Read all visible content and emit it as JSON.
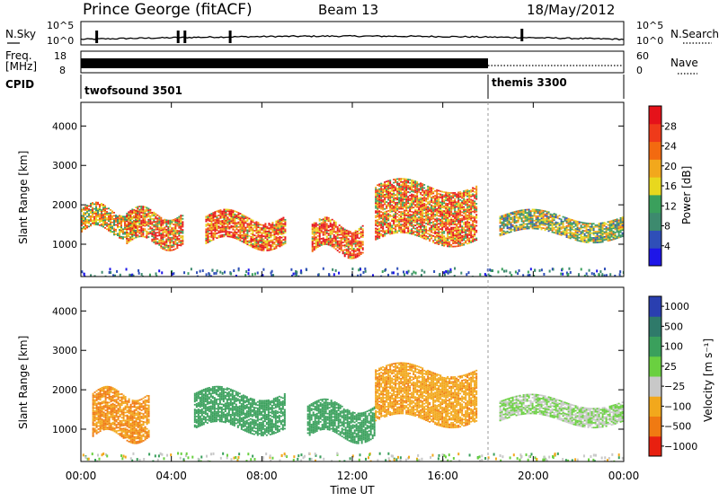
{
  "header": {
    "station": "Prince George (fitACF)",
    "beam": "Beam 13",
    "date": "18/May/2012"
  },
  "noise_panel": {
    "left_label": "N.Sky",
    "right_label": "N.Search",
    "y_ticks": [
      "10^5",
      "10^0"
    ],
    "spike_times_h": [
      0.7,
      4.3,
      4.6,
      6.6,
      19.5
    ]
  },
  "freq_panel": {
    "left_label": "Freq.",
    "left_unit": "[MHz]",
    "left_ticks": [
      "18",
      "8"
    ],
    "right_label": "Nave",
    "right_ticks": [
      "60",
      "0"
    ],
    "freq_mhz_until_18h": 10.5,
    "nave_after_18h": 12
  },
  "cpid_panel": {
    "label": "CPID",
    "programs": [
      {
        "name": "twofsound 3501",
        "start_h": 0,
        "end_h": 18
      },
      {
        "name": "themis 3300",
        "start_h": 18,
        "end_h": 24
      }
    ]
  },
  "x_axis": {
    "label": "Time UT",
    "ticks": [
      "00:00",
      "04:00",
      "08:00",
      "12:00",
      "16:00",
      "20:00",
      "00:00"
    ],
    "tick_values_h": [
      0,
      4,
      8,
      12,
      16,
      20,
      24
    ]
  },
  "chart_data": [
    {
      "type": "heatmap",
      "name": "Power",
      "ylabel": "Slant Range [km]",
      "y_ticks": [
        "1000",
        "2000",
        "3000",
        "4000"
      ],
      "ylim": [
        180,
        4600
      ],
      "xlim": [
        0,
        24
      ],
      "colorbar": {
        "label": "Power [dB]",
        "ticks": [
          "4",
          "8",
          "12",
          "16",
          "20",
          "24",
          "28"
        ],
        "colors": [
          "#1e16e8",
          "#2f4fb8",
          "#3d8a6e",
          "#3aa05c",
          "#e8d81e",
          "#f2a81c",
          "#f36a10",
          "#ef3a1a",
          "#e5121a"
        ]
      },
      "echo_bands": [
        {
          "start_h": 0.0,
          "end_h": 2.5,
          "range_km": [
            1300,
            1900
          ],
          "value": 20
        },
        {
          "start_h": 2.0,
          "end_h": 4.5,
          "range_km": [
            1000,
            1800
          ],
          "value": 24
        },
        {
          "start_h": 5.5,
          "end_h": 9.0,
          "range_km": [
            1000,
            1700
          ],
          "value": 26
        },
        {
          "start_h": 10.2,
          "end_h": 12.5,
          "range_km": [
            800,
            1500
          ],
          "value": 27
        },
        {
          "start_h": 13.0,
          "end_h": 17.5,
          "range_km": [
            1100,
            2500
          ],
          "value": 24
        },
        {
          "start_h": 18.5,
          "end_h": 24.0,
          "range_km": [
            1200,
            1700
          ],
          "value": 16
        }
      ]
    },
    {
      "type": "heatmap",
      "name": "Velocity",
      "ylabel": "Slant Range [km]",
      "y_ticks": [
        "1000",
        "2000",
        "3000",
        "4000"
      ],
      "ylim": [
        180,
        4600
      ],
      "xlim": [
        0,
        24
      ],
      "colorbar": {
        "label": "Velocity [m s⁻¹]",
        "ticks": [
          "1000",
          "500",
          "100",
          "25",
          "−25",
          "−100",
          "−500",
          "−1000"
        ],
        "colors": [
          "#2a3fb0",
          "#2f7a6a",
          "#3aa05c",
          "#6ad040",
          "#c8c8c8",
          "#f2a81c",
          "#f07a12",
          "#e82010"
        ]
      },
      "echo_bands": [
        {
          "start_h": 0.5,
          "end_h": 3.0,
          "range_km": [
            800,
            1900
          ],
          "value": -300
        },
        {
          "start_h": 5.0,
          "end_h": 9.0,
          "range_km": [
            1000,
            1900
          ],
          "value": 200
        },
        {
          "start_h": 10.0,
          "end_h": 13.0,
          "range_km": [
            800,
            1600
          ],
          "value": 150
        },
        {
          "start_h": 13.0,
          "end_h": 17.5,
          "range_km": [
            1200,
            2500
          ],
          "value": -250
        },
        {
          "start_h": 18.5,
          "end_h": 24.0,
          "range_km": [
            1200,
            1700
          ],
          "value": 0
        }
      ]
    }
  ]
}
